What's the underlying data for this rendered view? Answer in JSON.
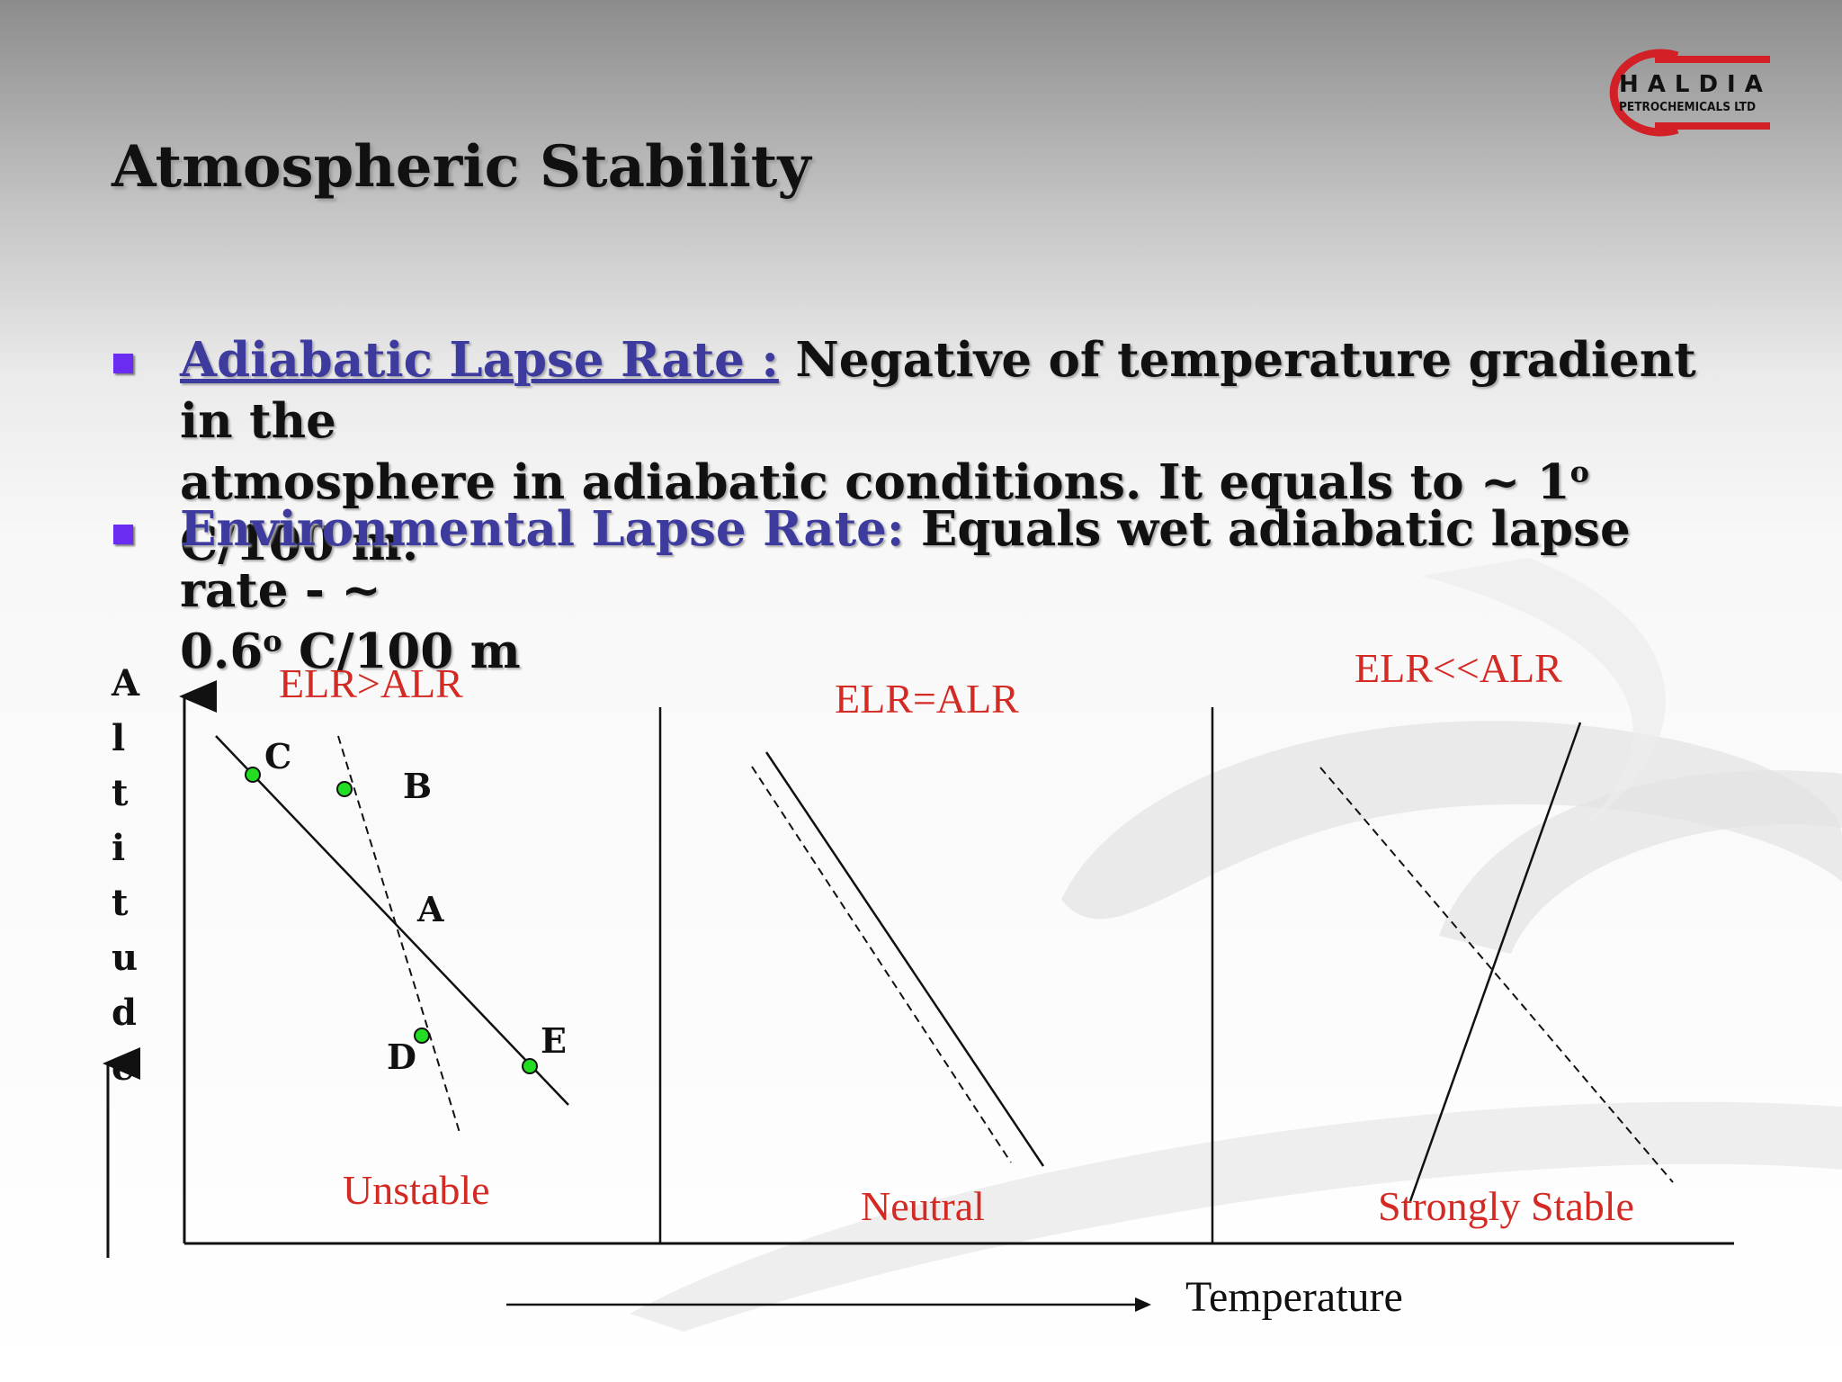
{
  "slide": {
    "title": "Atmospheric Stability",
    "logo": {
      "line1": "HALDIA",
      "line2": "PETROCHEMICALS LTD",
      "accent_color": "#d32027"
    },
    "bullets": [
      {
        "term": "Adiabatic Lapse Rate :",
        "text_line1": "Negative of  temperature gradient in the",
        "text_line2": "atmosphere in adiabatic conditions. It equals to ~ 1",
        "sup": "o",
        "text_line2_end": " C/100 m."
      },
      {
        "term": "Environmental Lapse Rate:",
        "text_line1": " Equals wet adiabatic lapse rate - ~",
        "text_line2": "0.6",
        "sup": "o",
        "text_line2_end": " C/100 m"
      }
    ],
    "bullet_color": "#6a2cf0",
    "term_color": "#3e3b9e"
  },
  "diagram": {
    "y_axis_label": [
      "A",
      "l",
      "t",
      "i",
      "t",
      "u",
      "d",
      "e"
    ],
    "x_axis_label": "Temperature",
    "label_color": "#d42a24",
    "panels": [
      {
        "condition": "ELR>ALR",
        "stability": "Unstable"
      },
      {
        "condition": "ELR=ALR",
        "stability": "Neutral"
      },
      {
        "condition": "ELR<<ALR",
        "stability": "Strongly Stable"
      }
    ],
    "points": [
      "C",
      "B",
      "A",
      "D",
      "E"
    ],
    "point_color": "#22dd22"
  }
}
